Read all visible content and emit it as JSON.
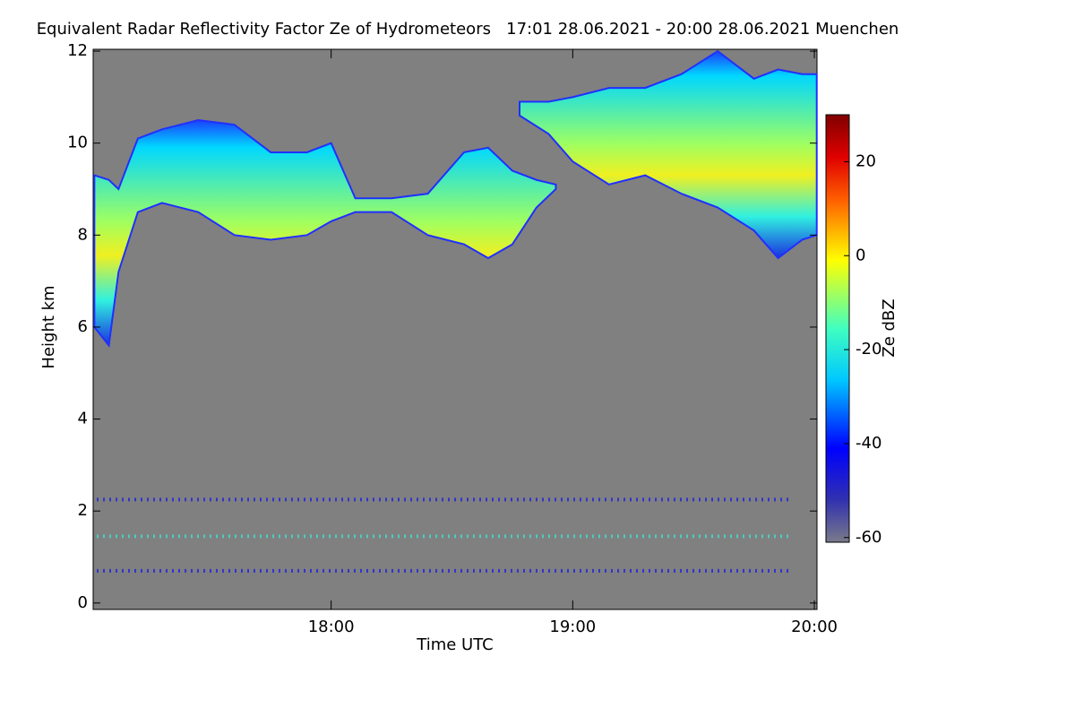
{
  "chart_data": {
    "type": "heatmap",
    "title": "Equivalent Radar Reflectivity Factor Ze of Hydrometeors   17:01 28.06.2021 - 20:00 28.06.2021 Muenchen",
    "x_label": "Time UTC",
    "y_label": "Height km",
    "colorbar_label": "Ze dBZ",
    "xlim": [
      17.015,
      20.011
    ],
    "xticks": [
      {
        "value": 18,
        "label": "18:00"
      },
      {
        "value": 19,
        "label": "19:00"
      },
      {
        "value": 20,
        "label": "20:00"
      }
    ],
    "ylim": [
      -0.14,
      12.04
    ],
    "yticks": [
      0,
      2,
      4,
      6,
      8,
      10,
      12
    ],
    "clim": [
      -61,
      30
    ],
    "cticks": [
      -60,
      -40,
      -20,
      0,
      20
    ],
    "echo_regions": [
      {
        "x": [
          17.02,
          17.08,
          17.12,
          17.2,
          17.3,
          17.45,
          17.6,
          17.75,
          17.9,
          18.0,
          18.1,
          18.25,
          18.4,
          18.55,
          18.65,
          18.75,
          18.85,
          18.93
        ],
        "top": [
          9.3,
          9.2,
          9.0,
          10.1,
          10.3,
          10.5,
          10.4,
          9.8,
          9.8,
          10.0,
          8.8,
          8.8,
          8.9,
          9.8,
          9.9,
          9.4,
          9.2,
          9.1
        ],
        "base": [
          6.0,
          5.6,
          7.2,
          8.5,
          8.7,
          8.5,
          8.0,
          7.9,
          8.0,
          8.3,
          8.5,
          8.5,
          8.0,
          7.8,
          7.5,
          7.8,
          8.6,
          9.0
        ]
      },
      {
        "x": [
          18.78,
          18.9,
          19.0,
          19.15,
          19.3,
          19.45,
          19.6,
          19.75,
          19.85,
          19.95,
          20.01
        ],
        "top": [
          10.9,
          10.9,
          11.0,
          11.2,
          11.2,
          11.5,
          12.0,
          11.4,
          11.6,
          11.5,
          11.5
        ],
        "base": [
          10.6,
          10.2,
          9.6,
          9.1,
          9.3,
          8.9,
          8.6,
          8.1,
          7.5,
          7.9,
          8.0
        ]
      }
    ],
    "clutter_heights": [
      0.7,
      1.45,
      2.25
    ]
  }
}
